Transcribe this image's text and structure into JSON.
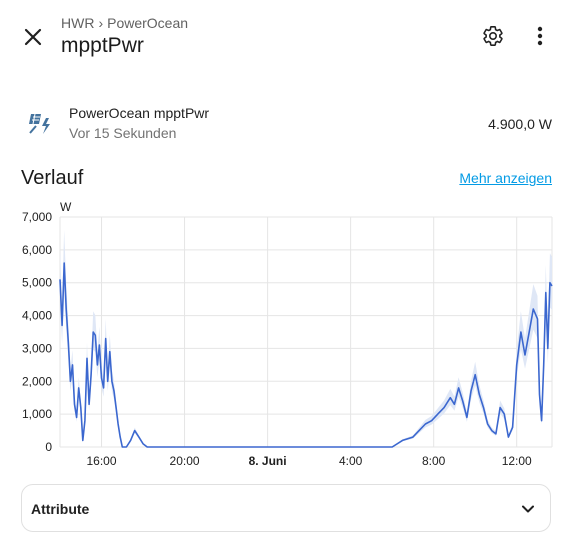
{
  "header": {
    "breadcrumb": [
      "HWR",
      "PowerOcean"
    ],
    "breadcrumb_separator": "›",
    "title": "mpptPwr",
    "close_icon": "close-icon",
    "settings_icon": "gear-icon",
    "menu_icon": "dots-vertical-icon"
  },
  "entity": {
    "icon": "solar-power-icon",
    "name": "PowerOcean mpptPwr",
    "last_changed": "Vor 15 Sekunden",
    "state": "4.900,0 W"
  },
  "history": {
    "title": "Verlauf",
    "more_link": "Mehr anzeigen"
  },
  "chart_data": {
    "type": "line",
    "ylabel": "W",
    "ylim": [
      0,
      7000
    ],
    "y_ticks": [
      "7,000",
      "6,000",
      "5,000",
      "4,000",
      "3,000",
      "2,000",
      "1,000",
      "0"
    ],
    "x_ticks": [
      "16:00",
      "20:00",
      "8. Juni",
      "4:00",
      "8:00",
      "12:00"
    ],
    "x_tick_hours": [
      16,
      20,
      24,
      28,
      32,
      36
    ],
    "xlim_hours": [
      14.0,
      37.7
    ],
    "grid": true,
    "line_color": "#3b67cf",
    "band_color": "#dfe7f6",
    "series": [
      {
        "x": [
          14.0,
          14.1,
          14.2,
          14.3,
          14.4,
          14.5,
          14.6,
          14.7,
          14.8,
          14.9,
          15.0,
          15.1,
          15.2,
          15.3,
          15.4,
          15.5,
          15.6,
          15.7,
          15.8,
          15.9,
          16.0,
          16.1,
          16.2,
          16.3,
          16.4,
          16.5,
          16.6,
          16.7,
          16.8,
          16.9,
          17.0,
          17.2,
          17.4,
          17.6,
          17.8,
          18.0,
          18.2,
          18.4,
          18.6,
          18.8,
          19.0,
          19.2,
          19.4,
          19.6,
          19.8,
          20.0,
          20.3,
          20.6,
          20.9,
          21.2,
          21.5,
          22.0,
          23.0,
          24.0,
          25.0,
          26.0,
          27.0,
          28.0,
          28.5,
          29.0,
          29.5,
          30.0,
          30.5,
          31.0,
          31.3,
          31.6,
          31.9,
          32.2,
          32.5,
          32.8,
          33.0,
          33.2,
          33.4,
          33.6,
          33.8,
          34.0,
          34.2,
          34.4,
          34.6,
          34.8,
          35.0,
          35.2,
          35.4,
          35.6,
          35.8,
          36.0,
          36.2,
          36.4,
          36.6,
          36.8,
          37.0,
          37.1,
          37.2,
          37.3,
          37.4,
          37.5,
          37.6,
          37.7
        ],
        "values": [
          5100,
          3700,
          5600,
          4200,
          3200,
          2000,
          2500,
          1300,
          900,
          1800,
          1200,
          200,
          800,
          2700,
          1300,
          2200,
          3500,
          3400,
          2500,
          3100,
          2100,
          1800,
          3300,
          2000,
          2900,
          2000,
          1700,
          1200,
          700,
          300,
          0,
          0,
          200,
          500,
          300,
          100,
          0,
          0,
          0,
          0,
          0,
          0,
          0,
          0,
          0,
          0,
          0,
          0,
          0,
          0,
          0,
          0,
          0,
          0,
          0,
          0,
          0,
          0,
          0,
          0,
          0,
          0,
          200,
          300,
          500,
          700,
          800,
          1000,
          1200,
          1500,
          1300,
          1800,
          1400,
          900,
          1700,
          2200,
          1600,
          1200,
          700,
          500,
          400,
          1200,
          1000,
          300,
          600,
          2500,
          3500,
          2800,
          3500,
          4200,
          3900,
          1600,
          800,
          2500,
          4700,
          3000,
          5000,
          4900
        ]
      }
    ]
  },
  "attributes": {
    "label": "Attribute",
    "chevron_icon": "chevron-down-icon"
  }
}
